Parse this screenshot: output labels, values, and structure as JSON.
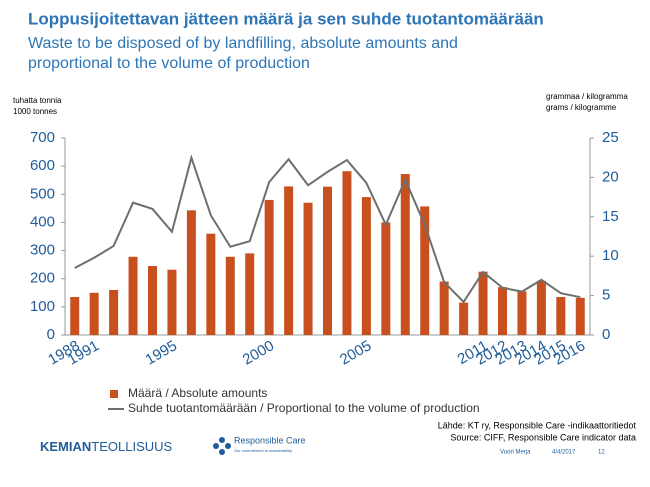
{
  "chart_data": {
    "type": "bar_line",
    "title": "Loppusijoitettavan jätteen määrä ja sen suhde tuotantomäärään",
    "subtitle": "Waste to be disposed of by landfilling, absolute amounts and proportional to the volume of production",
    "y_label": [
      "tuhatta tonnia",
      "1000 tonnes"
    ],
    "y2_label": [
      "grammaa / kilogramma",
      "grams / kilogramme"
    ],
    "categories": [
      "1988",
      "1991",
      null,
      null,
      null,
      "1995",
      null,
      null,
      null,
      null,
      "2000",
      null,
      null,
      null,
      null,
      "2005",
      null,
      null,
      null,
      null,
      null,
      "2011",
      "2012",
      "2013",
      "2014",
      "2015",
      "2016"
    ],
    "series": [
      {
        "name": "Määrä / Absolute amounts",
        "color": "#c8501e",
        "kind": "bar",
        "values": [
          135,
          150,
          160,
          278,
          245,
          232,
          443,
          360,
          278,
          290,
          480,
          528,
          470,
          527,
          582,
          490,
          400,
          572,
          457,
          190,
          115,
          225,
          170,
          155,
          192,
          135,
          132
        ]
      },
      {
        "name": "Suhde tuotantomäärään / Proportional to the volume of production",
        "color": "#6e6e6e",
        "kind": "line",
        "axis": "y2",
        "values": [
          8.5,
          9.8,
          11.3,
          16.8,
          16,
          13.1,
          22.5,
          15.2,
          11.2,
          11.9,
          19.4,
          22.3,
          19,
          20.7,
          22.2,
          19.3,
          14,
          19.7,
          14,
          6.7,
          4.2,
          8,
          6,
          5.5,
          7,
          5.3,
          4.8
        ]
      }
    ],
    "ylim": [
      0,
      700
    ],
    "yticks": [
      0,
      100,
      200,
      300,
      400,
      500,
      600,
      700
    ],
    "y2lim": [
      0,
      25
    ],
    "y2ticks": [
      0,
      5,
      10,
      15,
      20,
      25
    ],
    "source": [
      "Lähde: KT ry, Responsible Care -indikaattoritiedot",
      "Source: CIFF, Responsible Care indicator data"
    ]
  },
  "footer": {
    "logo_bold": "KEMIAN",
    "logo_rest": "TEOLLISUUS",
    "rc_name": "Responsible Care",
    "rc_tagline": "Our commitment to sustainability",
    "author": "Vuori Merja",
    "date": "4/4/2017",
    "page": "12"
  }
}
